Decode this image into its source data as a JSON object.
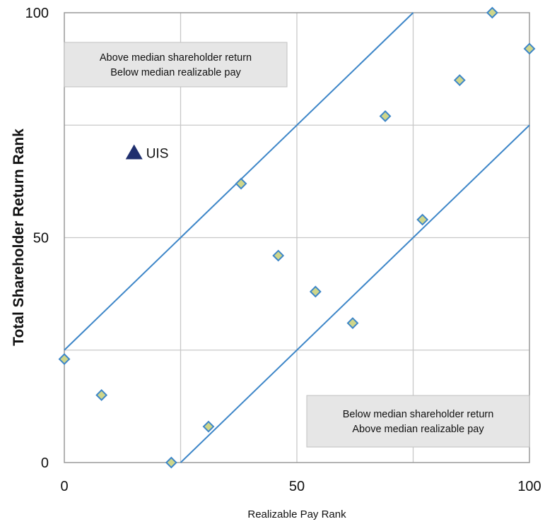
{
  "colors": {
    "grid": "#c8c8c8",
    "plot_border": "#9a9a9a",
    "reference_line": "#3d86c8",
    "marker_fill": "#cfd68a",
    "marker_stroke": "#3d86c8",
    "highlight_marker": "#1f2f6e",
    "annotation_box": "#e6e6e6",
    "annotation_box_border": "#c0c0c0"
  },
  "chart_data": {
    "type": "scatter",
    "xlabel": "Realizable Pay Rank",
    "ylabel": "Total Shareholder Return Rank",
    "xlim": [
      0,
      100
    ],
    "ylim": [
      0,
      100
    ],
    "x_ticks": [
      0,
      50,
      100
    ],
    "y_ticks": [
      0,
      50,
      100
    ],
    "grid_step": 25,
    "grid": true,
    "series": [
      {
        "marker": "diamond",
        "points": [
          {
            "x": 0,
            "y": 23
          },
          {
            "x": 8,
            "y": 15
          },
          {
            "x": 23,
            "y": 0
          },
          {
            "x": 31,
            "y": 8
          },
          {
            "x": 38,
            "y": 62
          },
          {
            "x": 46,
            "y": 46
          },
          {
            "x": 54,
            "y": 38
          },
          {
            "x": 62,
            "y": 31
          },
          {
            "x": 69,
            "y": 77
          },
          {
            "x": 77,
            "y": 54
          },
          {
            "x": 85,
            "y": 85
          },
          {
            "x": 92,
            "y": 100
          },
          {
            "x": 100,
            "y": 92
          }
        ]
      },
      {
        "name": "UIS",
        "marker": "triangle",
        "points": [
          {
            "x": 15,
            "y": 69
          }
        ]
      }
    ],
    "reference_lines": [
      {
        "from": [
          0,
          25
        ],
        "to": [
          75,
          100
        ]
      },
      {
        "from": [
          25,
          0
        ],
        "to": [
          100,
          75
        ]
      }
    ],
    "annotations": [
      {
        "position": "top-left",
        "lines": [
          "Above median shareholder return",
          "Below median realizable pay"
        ]
      },
      {
        "position": "bottom-right",
        "lines": [
          "Below median shareholder return",
          "Above median realizable pay"
        ]
      }
    ]
  }
}
